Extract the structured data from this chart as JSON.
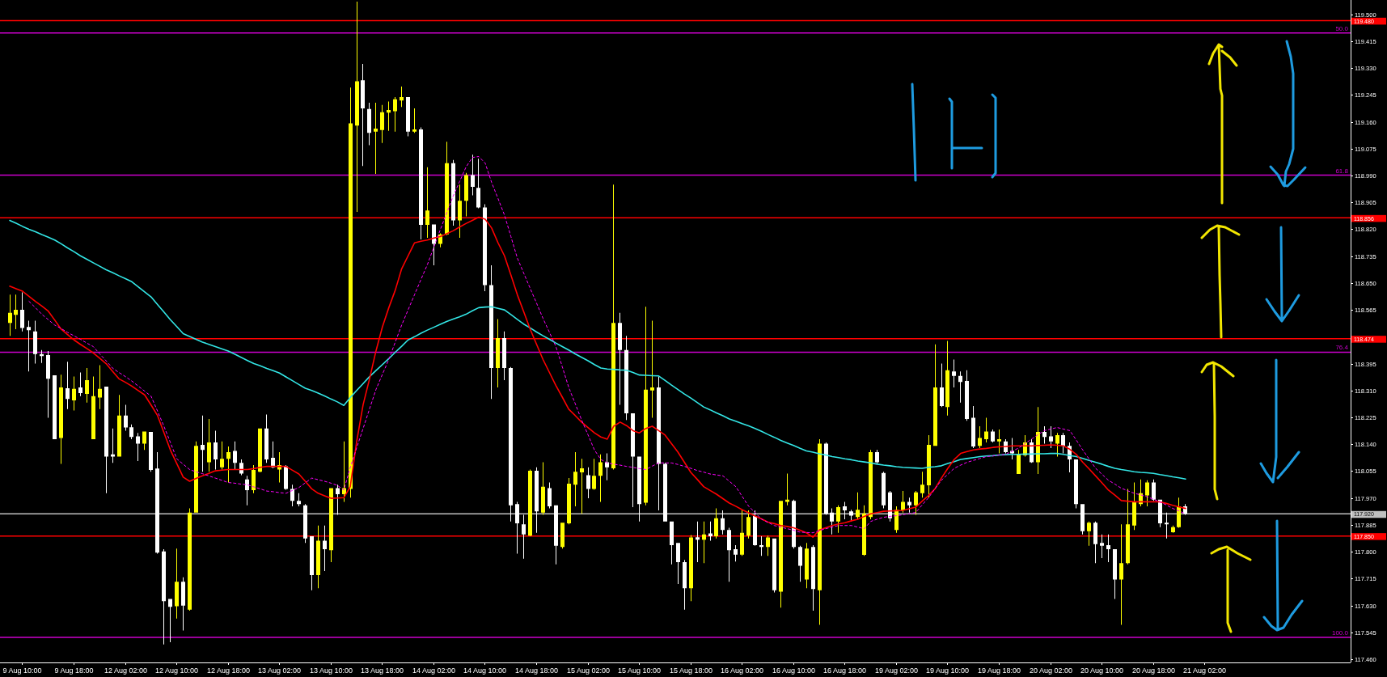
{
  "chart_data": {
    "type": "candlestick",
    "categories": [
      null,
      null,
      "9 Aug 10:00",
      null,
      null,
      null,
      null,
      null,
      null,
      null,
      "9 Aug 18:00",
      null,
      null,
      null,
      null,
      null,
      null,
      null,
      "12 Aug 02:00",
      null,
      null,
      null,
      null,
      null,
      null,
      null,
      "12 Aug 10:00",
      null,
      null,
      null,
      null,
      null,
      null,
      null,
      "12 Aug 18:00",
      null,
      null,
      null,
      null,
      null,
      null,
      null,
      "13 Aug 02:00",
      null,
      null,
      null,
      null,
      null,
      null,
      null,
      "13 Aug 10:00",
      null,
      null,
      null,
      null,
      null,
      null,
      null,
      "13 Aug 18:00",
      null,
      null,
      null,
      null,
      null,
      null,
      null,
      "14 Aug 02:00",
      null,
      null,
      null,
      null,
      null,
      null,
      null,
      "14 Aug 10:00",
      null,
      null,
      null,
      null,
      null,
      null,
      null,
      "14 Aug 18:00",
      null,
      null,
      null,
      null,
      null,
      null,
      null,
      "15 Aug 02:00",
      null,
      null,
      null,
      null,
      null,
      null,
      null,
      "15 Aug 10:00",
      null,
      null,
      null,
      null,
      null,
      null,
      null,
      "15 Aug 18:00",
      null,
      null,
      null,
      null,
      null,
      null,
      null,
      "16 Aug 02:00",
      null,
      null,
      null,
      null,
      null,
      null,
      null,
      "16 Aug 10:00",
      null,
      null,
      null,
      null,
      null,
      null,
      null,
      "16 Aug 18:00",
      null,
      null,
      null,
      null,
      null,
      null,
      null,
      "19 Aug 02:00",
      null,
      null,
      null,
      null,
      null,
      null,
      null,
      "19 Aug 10:00",
      null,
      null,
      null,
      null,
      null,
      null,
      null,
      "19 Aug 18:00",
      null,
      null,
      null,
      null,
      null,
      null,
      null,
      "20 Aug 02:00",
      null,
      null,
      null,
      null,
      null,
      null,
      null,
      "20 Aug 10:00",
      null,
      null,
      null,
      null,
      null,
      null,
      null,
      "20 Aug 18:00",
      null,
      null,
      null,
      null,
      null,
      null,
      null,
      "21 Aug 02:00"
    ],
    "ohlc": [
      [
        118.524,
        118.613,
        118.483,
        118.556
      ],
      [
        118.549,
        118.613,
        118.504,
        118.565
      ],
      [
        118.565,
        118.62,
        118.497,
        118.508
      ],
      [
        118.511,
        118.531,
        118.37,
        118.501
      ],
      [
        118.497,
        118.531,
        118.395,
        118.425
      ],
      [
        118.425,
        118.438,
        118.397,
        118.419
      ],
      [
        118.422,
        118.435,
        118.224,
        118.347
      ],
      [
        118.358,
        118.358,
        118.156,
        118.156
      ],
      [
        118.16,
        118.36,
        118.078,
        118.32
      ],
      [
        118.317,
        118.401,
        118.251,
        118.283
      ],
      [
        118.279,
        118.354,
        118.247,
        118.315
      ],
      [
        118.32,
        118.367,
        118.292,
        118.302
      ],
      [
        118.299,
        118.381,
        118.272,
        118.343
      ],
      [
        118.156,
        118.354,
        118.156,
        118.292
      ],
      [
        118.288,
        118.39,
        118.251,
        118.315
      ],
      [
        118.322,
        118.322,
        117.985,
        118.101
      ],
      [
        118.108,
        118.19,
        118.081,
        118.101
      ],
      [
        118.101,
        118.296,
        118.101,
        118.231
      ],
      [
        118.231,
        118.265,
        118.183,
        118.193
      ],
      [
        118.194,
        118.203,
        118.156,
        118.163
      ],
      [
        118.165,
        118.176,
        118.087,
        118.142
      ],
      [
        118.142,
        118.18,
        118.122,
        118.18
      ],
      [
        118.179,
        118.179,
        118.053,
        118.059
      ],
      [
        118.063,
        118.115,
        117.794,
        117.797
      ],
      [
        117.801,
        117.808,
        117.507,
        117.644
      ],
      [
        117.651,
        117.651,
        117.514,
        117.626
      ],
      [
        117.628,
        117.81,
        117.589,
        117.705
      ],
      [
        117.705,
        117.719,
        117.551,
        117.63
      ],
      [
        117.617,
        117.937,
        117.614,
        117.924
      ],
      [
        117.924,
        118.149,
        117.924,
        118.135
      ],
      [
        118.138,
        118.231,
        118.053,
        118.122
      ],
      [
        118.083,
        118.22,
        118.053,
        118.146
      ],
      [
        118.146,
        118.183,
        118.06,
        118.092
      ],
      [
        118.067,
        118.149,
        118.06,
        118.094
      ],
      [
        118.094,
        118.133,
        118.019,
        118.115
      ],
      [
        118.119,
        118.149,
        118.06,
        118.081
      ],
      [
        118.081,
        118.092,
        118.042,
        118.047
      ],
      [
        118.029,
        118.04,
        117.947,
        117.995
      ],
      [
        117.995,
        118.074,
        117.985,
        118.059
      ],
      [
        118.053,
        118.19,
        118.051,
        118.19
      ],
      [
        118.19,
        118.234,
        118.081,
        118.092
      ],
      [
        118.097,
        118.149,
        118.064,
        118.067
      ],
      [
        118.06,
        118.115,
        118.019,
        118.074
      ],
      [
        118.07,
        118.074,
        117.996,
        117.999
      ],
      [
        117.999,
        118.012,
        117.944,
        117.961
      ],
      [
        117.961,
        117.985,
        117.944,
        117.951
      ],
      [
        117.947,
        117.951,
        117.828,
        117.842
      ],
      [
        117.849,
        117.849,
        117.678,
        117.726
      ],
      [
        117.726,
        117.883,
        117.685,
        117.835
      ],
      [
        117.835,
        117.883,
        117.739,
        117.808
      ],
      [
        117.805,
        118.001,
        117.767,
        118.001
      ],
      [
        118.001,
        118.012,
        117.917,
        117.982
      ],
      [
        117.982,
        118.149,
        117.958,
        118.001
      ],
      [
        117.999,
        119.268,
        117.971,
        119.155
      ],
      [
        119.148,
        119.54,
        118.875,
        119.288
      ],
      [
        119.291,
        119.343,
        119.02,
        119.202
      ],
      [
        119.2,
        119.22,
        119.086,
        119.125
      ],
      [
        119.129,
        119.22,
        118.995,
        119.138
      ],
      [
        119.134,
        119.213,
        119.093,
        119.19
      ],
      [
        119.189,
        119.224,
        119.131,
        119.197
      ],
      [
        119.193,
        119.238,
        119.129,
        119.231
      ],
      [
        119.227,
        119.271,
        119.207,
        119.238
      ],
      [
        119.238,
        119.238,
        119.114,
        119.129
      ],
      [
        119.129,
        119.202,
        119.125,
        119.136
      ],
      [
        119.136,
        119.142,
        118.788,
        118.834
      ],
      [
        118.834,
        119.016,
        118.793,
        118.879
      ],
      [
        118.835,
        118.835,
        118.706,
        118.774
      ],
      [
        118.774,
        118.807,
        118.763,
        118.804
      ],
      [
        118.804,
        119.097,
        118.801,
        119.029
      ],
      [
        119.029,
        119.039,
        118.831,
        118.848
      ],
      [
        118.848,
        118.961,
        118.793,
        118.91
      ],
      [
        118.91,
        118.998,
        118.861,
        118.991
      ],
      [
        118.991,
        119.056,
        118.927,
        118.954
      ],
      [
        118.951,
        119.043,
        118.886,
        118.889
      ],
      [
        118.889,
        118.899,
        118.624,
        118.643
      ],
      [
        118.643,
        118.706,
        118.283,
        118.381
      ],
      [
        118.381,
        118.536,
        118.32,
        118.476
      ],
      [
        118.476,
        118.497,
        118.343,
        118.381
      ],
      [
        118.381,
        118.384,
        117.896,
        117.947
      ],
      [
        117.951,
        117.958,
        117.794,
        117.89
      ],
      [
        117.887,
        117.917,
        117.778,
        117.855
      ],
      [
        117.851,
        118.06,
        117.849,
        118.056
      ],
      [
        118.056,
        118.067,
        117.86,
        117.928
      ],
      [
        117.924,
        118.083,
        117.917,
        118.006
      ],
      [
        118.001,
        118.019,
        117.937,
        117.944
      ],
      [
        117.947,
        117.947,
        117.76,
        117.819
      ],
      [
        117.815,
        117.892,
        117.81,
        117.892
      ],
      [
        117.89,
        118.033,
        117.887,
        118.015
      ],
      [
        118.012,
        118.115,
        117.944,
        118.053
      ],
      [
        118.051,
        118.094,
        117.92,
        118.064
      ],
      [
        118.042,
        118.067,
        117.969,
        117.999
      ],
      [
        117.999,
        118.094,
        117.996,
        118.04
      ],
      [
        118.04,
        118.108,
        117.958,
        118.083
      ],
      [
        118.083,
        118.111,
        118.026,
        118.067
      ],
      [
        118.064,
        118.961,
        118.06,
        118.524
      ],
      [
        118.524,
        118.556,
        118.265,
        118.438
      ],
      [
        118.438,
        118.483,
        118.217,
        118.238
      ],
      [
        118.238,
        118.238,
        117.941,
        118.101
      ],
      [
        118.101,
        118.101,
        117.896,
        117.951
      ],
      [
        117.955,
        118.575,
        117.947,
        118.313
      ],
      [
        118.31,
        118.531,
        118.224,
        118.32
      ],
      [
        118.32,
        118.354,
        117.931,
        118.078
      ],
      [
        118.078,
        118.081,
        117.896,
        117.896
      ],
      [
        117.896,
        117.896,
        117.76,
        117.821
      ],
      [
        117.828,
        117.828,
        117.698,
        117.767
      ],
      [
        117.767,
        117.774,
        117.617,
        117.685
      ],
      [
        117.685,
        117.853,
        117.644,
        117.845
      ],
      [
        117.846,
        117.896,
        117.767,
        117.838
      ],
      [
        117.838,
        117.896,
        117.764,
        117.855
      ],
      [
        117.858,
        117.896,
        117.835,
        117.849
      ],
      [
        117.849,
        117.937,
        117.842,
        117.906
      ],
      [
        117.906,
        117.931,
        117.855,
        117.869
      ],
      [
        117.869,
        117.876,
        117.705,
        117.805
      ],
      [
        117.808,
        117.821,
        117.769,
        117.791
      ],
      [
        117.791,
        117.931,
        117.787,
        117.86
      ],
      [
        117.851,
        117.931,
        117.842,
        117.91
      ],
      [
        117.913,
        117.931,
        117.819,
        117.821
      ],
      [
        117.821,
        117.849,
        117.787,
        117.815
      ],
      [
        117.815,
        117.851,
        117.787,
        117.845
      ],
      [
        117.842,
        117.842,
        117.671,
        117.678
      ],
      [
        117.674,
        117.961,
        117.623,
        117.961
      ],
      [
        117.958,
        118.047,
        117.947,
        117.965
      ],
      [
        117.961,
        117.965,
        117.81,
        117.815
      ],
      [
        117.815,
        117.819,
        117.705,
        117.756
      ],
      [
        117.712,
        117.828,
        117.685,
        117.81
      ],
      [
        117.815,
        117.821,
        117.614,
        117.682
      ],
      [
        117.678,
        118.156,
        117.569,
        118.142
      ],
      [
        118.142,
        118.146,
        117.917,
        117.92
      ],
      [
        117.924,
        117.937,
        117.855,
        117.896
      ],
      [
        117.896,
        117.947,
        117.86,
        117.941
      ],
      [
        117.944,
        117.958,
        117.903,
        117.931
      ],
      [
        117.928,
        117.933,
        117.896,
        117.914
      ],
      [
        117.91,
        117.988,
        117.903,
        117.933
      ],
      [
        117.79,
        117.947,
        117.787,
        117.921
      ],
      [
        117.91,
        118.122,
        117.903,
        118.115
      ],
      [
        118.115,
        118.122,
        118.078,
        118.083
      ],
      [
        118.049,
        118.053,
        117.937,
        117.947
      ],
      [
        117.988,
        117.992,
        117.896,
        117.906
      ],
      [
        117.869,
        117.944,
        117.86,
        117.933
      ],
      [
        117.931,
        117.992,
        117.924,
        117.958
      ],
      [
        117.958,
        117.971,
        117.924,
        117.947
      ],
      [
        117.947,
        117.992,
        117.917,
        117.988
      ],
      [
        117.985,
        118.053,
        117.971,
        118.012
      ],
      [
        118.01,
        118.169,
        117.971,
        118.138
      ],
      [
        118.135,
        118.456,
        118.135,
        118.32
      ],
      [
        118.32,
        118.395,
        118.258,
        118.261
      ],
      [
        118.258,
        118.467,
        118.231,
        118.374
      ],
      [
        118.37,
        118.408,
        118.32,
        118.356
      ],
      [
        118.356,
        118.37,
        118.272,
        118.337
      ],
      [
        118.34,
        118.374,
        118.214,
        118.22
      ],
      [
        118.224,
        118.261,
        118.128,
        118.133
      ],
      [
        118.135,
        118.197,
        118.128,
        118.16
      ],
      [
        118.156,
        118.224,
        118.146,
        118.18
      ],
      [
        118.18,
        118.187,
        118.146,
        118.149
      ],
      [
        118.149,
        118.187,
        118.111,
        118.156
      ],
      [
        118.149,
        118.156,
        118.111,
        118.115
      ],
      [
        118.119,
        118.16,
        118.092,
        118.111
      ],
      [
        118.046,
        118.122,
        118.046,
        118.108
      ],
      [
        118.105,
        118.169,
        118.101,
        118.146
      ],
      [
        118.146,
        118.156,
        118.081,
        118.083
      ],
      [
        118.083,
        118.258,
        118.046,
        118.179
      ],
      [
        118.179,
        118.197,
        118.142,
        118.163
      ],
      [
        118.165,
        118.197,
        118.128,
        118.149
      ],
      [
        118.142,
        118.176,
        118.101,
        118.169
      ],
      [
        118.169,
        118.176,
        118.111,
        118.135
      ],
      [
        118.135,
        118.146,
        118.051,
        118.092
      ],
      [
        118.092,
        118.092,
        117.937,
        117.951
      ],
      [
        117.951,
        117.951,
        117.855,
        117.865
      ],
      [
        117.865,
        117.896,
        117.819,
        117.892
      ],
      [
        117.892,
        117.896,
        117.764,
        117.824
      ],
      [
        117.828,
        117.855,
        117.78,
        117.819
      ],
      [
        117.821,
        117.855,
        117.767,
        117.808
      ],
      [
        117.808,
        117.808,
        117.651,
        117.712
      ],
      [
        117.712,
        117.887,
        117.569,
        117.764
      ],
      [
        117.764,
        117.999,
        117.76,
        117.887
      ],
      [
        117.883,
        118.019,
        117.869,
        117.958
      ],
      [
        117.951,
        118.029,
        117.944,
        117.985
      ],
      [
        117.978,
        118.026,
        117.944,
        118.019
      ],
      [
        118.019,
        118.029,
        117.961,
        117.965
      ],
      [
        117.965,
        117.965,
        117.878,
        117.89
      ],
      [
        117.892,
        117.924,
        117.842,
        117.887
      ],
      [
        117.862,
        117.883,
        117.86,
        117.878
      ],
      [
        117.878,
        117.971,
        117.876,
        117.944
      ],
      [
        117.944,
        117.951,
        117.917,
        117.92
      ],
      null,
      null,
      null
    ],
    "colors": [
      "#ffff00",
      "#ffff00",
      "#ffffff",
      "#ffffff",
      "#ffffff",
      "#ffffff",
      "#ffffff",
      "#ffffff",
      "#ffff00",
      "#ffffff",
      "#ffff00",
      "#ffffff",
      "#ffff00",
      "#ffff00",
      "#ffff00",
      "#ffffff",
      "#ffffff",
      "#ffff00",
      "#ffffff",
      "#ffffff",
      "#ffffff",
      "#ffff00",
      "#ffffff",
      "#ffffff",
      "#ffffff",
      "#ffffff",
      "#ffff00",
      "#ffffff",
      "#ffff00",
      "#ffff00",
      "#ffffff",
      "#ffff00",
      "#ffffff",
      "#ffff00",
      "#ffff00",
      "#ffffff",
      "#ffffff",
      "#ffffff",
      "#ffff00",
      "#ffff00",
      "#ffffff",
      "#ffffff",
      "#ffff00",
      "#ffffff",
      "#ffffff",
      "#ffffff",
      "#ffffff",
      "#ffffff",
      "#ffff00",
      "#ffffff",
      "#ffff00",
      "#ffffff",
      "#ffff00",
      "#ffff00",
      "#ffff00",
      "#ffffff",
      "#ffffff",
      "#ffff00",
      "#ffff00",
      "#ffff00",
      "#ffff00",
      "#ffff00",
      "#ffffff",
      "#ffff00",
      "#ffffff",
      "#ffff00",
      "#ffffff",
      "#ffff00",
      "#ffff00",
      "#ffffff",
      "#ffff00",
      "#ffff00",
      "#ffffff",
      "#ffffff",
      "#ffffff",
      "#ffffff",
      "#ffff00",
      "#ffffff",
      "#ffffff",
      "#ffffff",
      "#ffffff",
      "#ffff00",
      "#ffffff",
      "#ffff00",
      "#ffffff",
      "#ffffff",
      "#ffff00",
      "#ffff00",
      "#ffff00",
      "#ffff00",
      "#ffffff",
      "#ffff00",
      "#ffff00",
      "#ffffff",
      "#ffff00",
      "#ffffff",
      "#ffffff",
      "#ffffff",
      "#ffffff",
      "#ffff00",
      "#ffff00",
      "#ffffff",
      "#ffffff",
      "#ffffff",
      "#ffffff",
      "#ffffff",
      "#ffff00",
      "#ffffff",
      "#ffff00",
      "#ffffff",
      "#ffff00",
      "#ffffff",
      "#ffffff",
      "#ffffff",
      "#ffff00",
      "#ffff00",
      "#ffffff",
      "#ffffff",
      "#ffff00",
      "#ffffff",
      "#ffff00",
      "#ffff00",
      "#ffffff",
      "#ffffff",
      "#ffff00",
      "#ffffff",
      "#ffff00",
      "#ffffff",
      "#ffffff",
      "#ffff00",
      "#ffffff",
      "#ffffff",
      "#ffff00",
      "#ffff00",
      "#ffff00",
      "#ffffff",
      "#ffffff",
      "#ffffff",
      "#ffff00",
      "#ffff00",
      "#ffffff",
      "#ffff00",
      "#ffff00",
      "#ffff00",
      "#ffff00",
      "#ffffff",
      "#ffff00",
      "#ffffff",
      "#ffffff",
      "#ffffff",
      "#ffffff",
      "#ffff00",
      "#ffff00",
      "#ffffff",
      "#ffff00",
      "#ffffff",
      "#ffffff",
      "#ffff00",
      "#ffff00",
      "#ffffff",
      "#ffff00",
      "#ffffff",
      "#ffffff",
      "#ffff00",
      "#ffffff",
      "#ffffff",
      "#ffffff",
      "#ffffff",
      "#ffff00",
      "#ffffff",
      "#ffffff",
      "#ffffff",
      "#ffffff",
      "#ffff00",
      "#ffff00",
      "#ffff00",
      "#ffff00",
      "#ffff00",
      "#ffffff",
      "#ffffff",
      "#ffffff",
      "#ffff00",
      "#ffff00",
      "#ffffff",
      null,
      null,
      null
    ],
    "series": [
      {
        "type": "line",
        "color": "#33e6e6",
        "values": [
          118.848,
          118.839,
          118.829,
          118.82,
          118.812,
          118.803,
          118.795,
          118.786,
          118.774,
          118.761,
          118.749,
          118.736,
          118.725,
          118.714,
          118.703,
          118.692,
          118.683,
          118.673,
          118.664,
          118.654,
          118.638,
          118.622,
          118.606,
          118.582,
          118.558,
          118.534,
          118.512,
          118.49,
          118.481,
          118.472,
          118.463,
          118.456,
          118.449,
          118.442,
          118.435,
          118.425,
          118.415,
          118.405,
          118.395,
          118.388,
          118.38,
          118.373,
          118.365,
          118.353,
          118.341,
          118.329,
          118.317,
          118.31,
          118.302,
          118.293,
          118.283,
          118.274,
          118.263,
          118.288,
          118.31,
          118.332,
          118.354,
          118.373,
          118.392,
          118.411,
          118.431,
          118.45,
          118.47,
          118.48,
          118.491,
          118.501,
          118.51,
          118.519,
          118.528,
          118.536,
          118.543,
          118.551,
          118.562,
          118.572,
          118.574,
          118.575,
          118.57,
          118.565,
          118.55,
          118.535,
          118.52,
          118.508,
          118.495,
          118.483,
          118.472,
          118.46,
          118.449,
          118.438,
          118.426,
          118.415,
          118.404,
          118.392,
          118.381,
          118.378,
          118.377,
          118.375,
          118.374,
          118.367,
          118.359,
          118.358,
          118.357,
          118.356,
          118.342,
          118.327,
          118.313,
          118.299,
          118.286,
          118.272,
          118.258,
          118.249,
          118.239,
          118.23,
          118.22,
          118.213,
          118.205,
          118.198,
          118.19,
          118.181,
          118.171,
          118.162,
          118.152,
          118.144,
          118.136,
          118.127,
          118.119,
          118.115,
          118.11,
          118.106,
          118.101,
          118.098,
          118.094,
          118.091,
          118.087,
          118.084,
          118.081,
          118.077,
          118.074,
          118.072,
          118.069,
          118.067,
          118.066,
          118.065,
          118.064,
          118.067,
          118.069,
          118.072,
          118.079,
          118.085,
          118.092,
          118.095,
          118.098,
          118.101,
          118.103,
          118.104,
          118.106,
          118.107,
          118.108,
          118.108,
          118.109,
          118.109,
          118.11,
          118.11,
          118.111,
          118.111,
          118.108,
          118.104,
          118.101,
          118.095,
          118.089,
          118.083,
          118.077,
          118.07,
          118.064,
          118.06,
          118.057,
          118.053,
          118.051,
          118.05,
          118.048,
          118.044,
          118.041,
          118.037,
          118.034,
          118.03,
          null,
          null,
          null
        ]
      },
      {
        "type": "line",
        "color": "#ff0000",
        "values": [
          118.64,
          118.632,
          118.624,
          118.608,
          118.592,
          118.577,
          118.561,
          118.533,
          118.504,
          118.487,
          118.47,
          118.456,
          118.443,
          118.429,
          118.412,
          118.395,
          118.371,
          118.347,
          118.336,
          118.324,
          118.31,
          118.296,
          118.264,
          118.231,
          118.177,
          118.122,
          118.079,
          118.036,
          118.023,
          118.032,
          118.04,
          118.048,
          118.056,
          118.058,
          118.06,
          118.06,
          118.06,
          118.06,
          118.063,
          118.067,
          118.07,
          118.07,
          118.07,
          118.07,
          118.058,
          118.046,
          118.023,
          117.999,
          117.985,
          117.977,
          117.969,
          117.97,
          117.971,
          118.006,
          118.149,
          118.265,
          118.347,
          118.435,
          118.511,
          118.572,
          118.627,
          118.695,
          118.736,
          118.777,
          118.782,
          118.786,
          118.792,
          118.797,
          118.806,
          118.815,
          118.827,
          118.838,
          118.848,
          118.858,
          118.852,
          118.824,
          118.777,
          118.736,
          118.675,
          118.613,
          118.559,
          118.504,
          118.456,
          118.408,
          118.367,
          118.326,
          118.289,
          118.251,
          118.231,
          118.21,
          118.193,
          118.176,
          118.163,
          118.156,
          118.197,
          118.21,
          118.199,
          118.183,
          118.176,
          118.19,
          118.197,
          118.183,
          118.169,
          118.142,
          118.115,
          118.083,
          118.051,
          118.029,
          118.006,
          117.994,
          117.982,
          117.968,
          117.954,
          117.944,
          117.933,
          117.923,
          117.913,
          117.904,
          117.894,
          117.889,
          117.883,
          117.88,
          117.876,
          117.868,
          117.86,
          117.846,
          117.869,
          117.876,
          117.883,
          117.888,
          117.892,
          117.898,
          117.903,
          117.912,
          117.92,
          117.924,
          117.928,
          117.929,
          117.93,
          117.931,
          117.936,
          117.941,
          117.96,
          117.978,
          117.999,
          118.033,
          118.064,
          118.092,
          118.111,
          118.117,
          118.122,
          118.125,
          118.127,
          118.13,
          118.132,
          118.133,
          118.135,
          118.135,
          118.135,
          118.135,
          118.136,
          118.137,
          118.138,
          118.137,
          118.135,
          118.124,
          118.108,
          118.083,
          118.062,
          118.04,
          118.018,
          117.995,
          117.979,
          117.962,
          117.96,
          117.958,
          117.958,
          117.958,
          117.958,
          117.958,
          117.953,
          117.947,
          117.942,
          117.937,
          null,
          null,
          null
        ]
      },
      {
        "type": "line",
        "color": "#ff00ff",
        "line_style": "dashed",
        "values": [
          null,
          null,
          null,
          118.592,
          118.572,
          118.551,
          118.534,
          118.517,
          118.506,
          118.494,
          118.483,
          118.472,
          118.46,
          118.449,
          118.426,
          118.404,
          118.381,
          118.367,
          118.354,
          118.34,
          118.324,
          118.308,
          118.292,
          118.245,
          118.197,
          118.146,
          118.094,
          118.077,
          118.06,
          118.053,
          118.047,
          118.04,
          118.033,
          118.026,
          118.019,
          118.017,
          118.014,
          118.012,
          118.005,
          117.999,
          117.992,
          117.99,
          117.987,
          117.985,
          117.994,
          118.003,
          118.018,
          118.033,
          118.028,
          118.023,
          118.017,
          118.01,
          117.995,
          118.067,
          118.129,
          118.19,
          118.252,
          118.313,
          118.361,
          118.408,
          118.463,
          118.517,
          118.565,
          118.613,
          118.661,
          118.708,
          118.763,
          118.818,
          118.871,
          118.924,
          118.97,
          119.016,
          119.047,
          119.05,
          119.029,
          118.968,
          118.917,
          118.865,
          118.797,
          118.729,
          118.681,
          118.633,
          118.586,
          118.538,
          118.494,
          118.449,
          118.385,
          118.32,
          118.269,
          118.217,
          118.17,
          118.122,
          118.092,
          118.081,
          118.077,
          118.074,
          118.07,
          118.067,
          118.063,
          118.06,
          118.071,
          118.081,
          118.081,
          118.081,
          118.076,
          118.07,
          118.064,
          118.057,
          118.052,
          118.046,
          118.043,
          118.04,
          118.023,
          118.006,
          117.975,
          117.944,
          117.924,
          117.903,
          117.893,
          117.883,
          117.878,
          117.873,
          117.868,
          117.862,
          117.861,
          117.86,
          117.867,
          117.873,
          117.878,
          117.883,
          117.883,
          117.883,
          117.878,
          117.873,
          117.896,
          117.903,
          117.909,
          117.912,
          117.914,
          117.917,
          117.921,
          117.924,
          117.948,
          117.971,
          117.999,
          118.026,
          118.045,
          118.064,
          118.074,
          118.083,
          118.089,
          118.095,
          118.101,
          118.103,
          118.106,
          118.108,
          118.118,
          118.128,
          118.142,
          118.156,
          118.17,
          118.183,
          118.188,
          118.193,
          118.188,
          118.183,
          118.153,
          118.122,
          118.093,
          118.064,
          118.045,
          118.026,
          118.014,
          118.001,
          117.993,
          117.985,
          117.98,
          117.974,
          117.966,
          117.958,
          117.948,
          117.937,
          117.929,
          117.92,
          null,
          null,
          null
        ]
      }
    ],
    "ylim": [
      117.45,
      119.545
    ],
    "yticks": [
      {
        "value": 119.5,
        "label": "119.500"
      },
      {
        "value": 119.415,
        "label": "119.415"
      },
      {
        "value": 119.33,
        "label": "119.330"
      },
      {
        "value": 119.245,
        "label": "119.245"
      },
      {
        "value": 119.16,
        "label": "119.160"
      },
      {
        "value": 119.075,
        "label": "119.075"
      },
      {
        "value": 118.99,
        "label": "118.990"
      },
      {
        "value": 118.905,
        "label": "118.905"
      },
      {
        "value": 118.82,
        "label": "118.820"
      },
      {
        "value": 118.735,
        "label": "118.735"
      },
      {
        "value": 118.65,
        "label": "118.650"
      },
      {
        "value": 118.565,
        "label": "118.565"
      },
      {
        "value": 118.395,
        "label": "118.395"
      },
      {
        "value": 118.31,
        "label": "118.310"
      },
      {
        "value": 118.225,
        "label": "118.225"
      },
      {
        "value": 118.14,
        "label": "118.140"
      },
      {
        "value": 118.055,
        "label": "118.055"
      },
      {
        "value": 117.97,
        "label": "117.970"
      },
      {
        "value": 117.885,
        "label": "117.885"
      },
      {
        "value": 117.8,
        "label": "117.800"
      },
      {
        "value": 117.715,
        "label": "117.715"
      },
      {
        "value": 117.63,
        "label": "117.630"
      },
      {
        "value": 117.545,
        "label": "117.545"
      },
      {
        "value": 117.46,
        "label": "117.460"
      }
    ],
    "ref_lines": [
      {
        "axis": "y",
        "value": 119.441,
        "color": "#cc00cc"
      },
      {
        "axis": "y",
        "value": 118.991,
        "color": "#cc00cc"
      },
      {
        "axis": "y",
        "value": 118.431,
        "color": "#cc00cc"
      },
      {
        "axis": "y",
        "value": 117.529,
        "color": "#cc00cc"
      },
      {
        "axis": "y",
        "value": 119.48,
        "label": "119.480",
        "color": "#ff0000"
      },
      {
        "axis": "y",
        "value": 118.856,
        "label": "118.856",
        "color": "#ff0000"
      },
      {
        "axis": "y",
        "value": 118.474,
        "label": "118.474",
        "color": "#ff0000"
      },
      {
        "axis": "y",
        "value": 117.85,
        "label": "117.850",
        "color": "#ff0000"
      },
      {
        "axis": "y",
        "value": 117.92,
        "label": "117.920",
        "color": "#c0c0c0"
      }
    ],
    "annotations": [
      {
        "text": "50.0",
        "y": 119.441
      },
      {
        "text": "61.8",
        "y": 118.991
      },
      {
        "text": "76.4",
        "y": 118.431
      },
      {
        "text": "100.0",
        "y": 117.529
      }
    ]
  }
}
